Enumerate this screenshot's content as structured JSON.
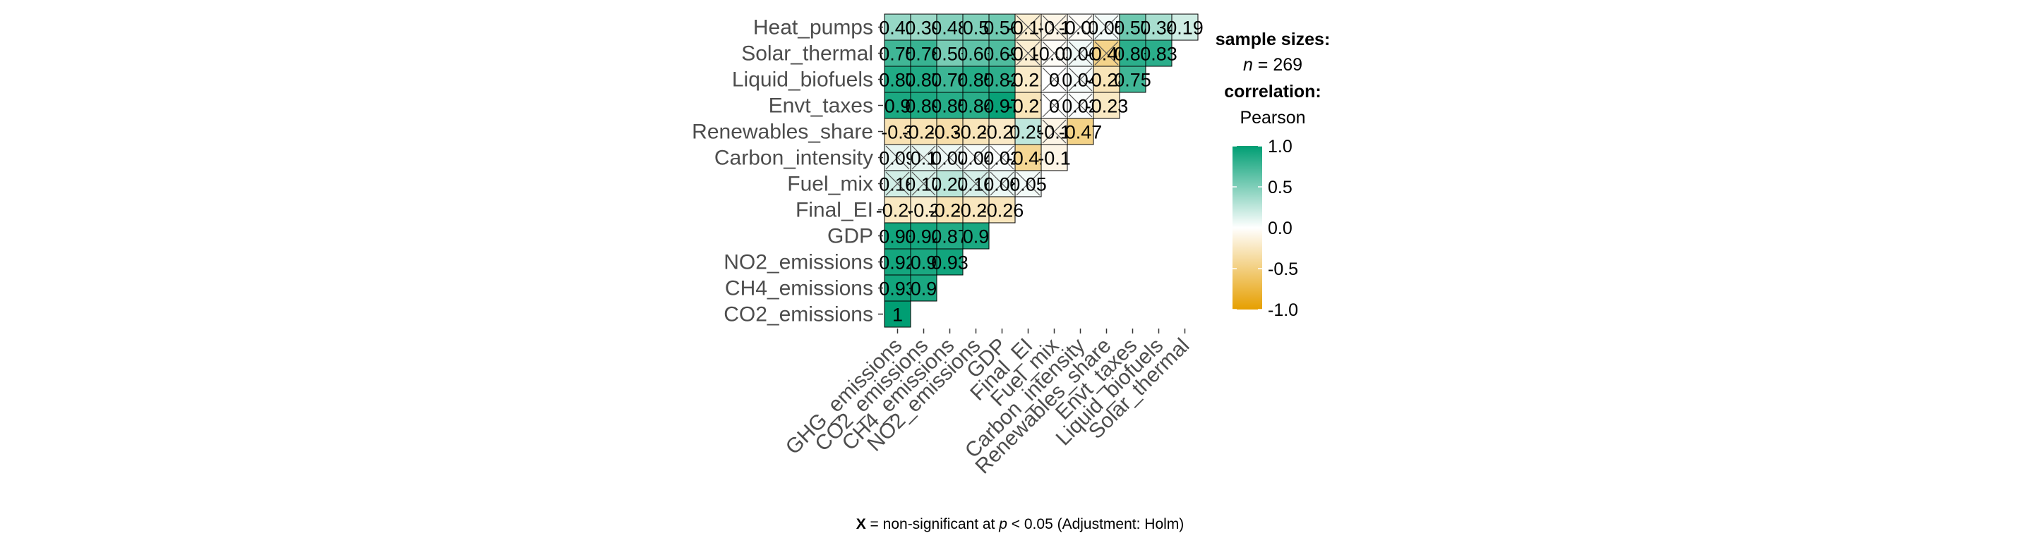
{
  "chart_data": {
    "type": "heatmap",
    "subtype": "lower-triangular correlation matrix",
    "row_labels": [
      "Heat_pumps",
      "Solar_thermal",
      "Liquid_biofuels",
      "Envt_taxes",
      "Renewables_share",
      "Carbon_intensity",
      "Fuel_mix",
      "Final_EI",
      "GDP",
      "NO2_emissions",
      "CH4_emissions",
      "CO2_emissions"
    ],
    "col_labels": [
      "GHG_emissions",
      "CO2_emissions",
      "CH4_emissions",
      "NO2_emissions",
      "GDP",
      "Final_EI",
      "Fuel_mix",
      "Carbon_intensity",
      "Renewables_share",
      "Envt_taxes",
      "Liquid_biofuels",
      "Solar_thermal"
    ],
    "rows": [
      {
        "label": "Heat_pumps",
        "values": [
          0.41,
          0.39,
          0.48,
          0.5,
          0.56,
          -0.18,
          -0.1,
          -0.03,
          0.05,
          0.57,
          0.34,
          0.19
        ],
        "labels": [
          "0.41",
          "0.39",
          "0.48",
          "0.5",
          "0.56",
          "-0.18",
          "-0.1",
          "-0.03",
          "0.05",
          "0.57",
          "0.34",
          "0.19"
        ],
        "crossed": [
          false,
          false,
          false,
          false,
          false,
          true,
          true,
          true,
          true,
          false,
          false,
          false
        ]
      },
      {
        "label": "Solar_thermal",
        "values": [
          0.75,
          0.78,
          0.53,
          0.63,
          0.69,
          -0.18,
          -0.03,
          0.06,
          -0.46,
          0.83,
          0.83
        ],
        "labels": [
          "0.75",
          "0.78",
          "0.53",
          "0.63",
          "0.69",
          "-0.18",
          "-0.03",
          "0.06",
          "-0.46",
          "0.83",
          "0.83"
        ],
        "crossed": [
          false,
          false,
          false,
          false,
          false,
          true,
          true,
          true,
          true,
          false,
          false
        ]
      },
      {
        "label": "Liquid_biofuels",
        "values": [
          0.87,
          0.87,
          0.76,
          0.85,
          0.82,
          -0.21,
          0,
          0.04,
          -0.28,
          0.75
        ],
        "labels": [
          "0.87",
          "0.87",
          "0.76",
          "0.85",
          "0.82",
          "-0.21",
          "0",
          "0.04",
          "-0.28",
          "0.75"
        ],
        "crossed": [
          false,
          false,
          false,
          false,
          false,
          false,
          true,
          true,
          false,
          false
        ]
      },
      {
        "label": "Envt_taxes",
        "values": [
          0.9,
          0.89,
          0.85,
          0.84,
          0.97,
          -0.27,
          0,
          0.02,
          -0.23
        ],
        "labels": [
          "0.9",
          "0.89",
          "0.85",
          "0.84",
          "0.97",
          "-0.27",
          "0",
          "0.02",
          "-0.23"
        ],
        "crossed": [
          false,
          false,
          false,
          false,
          false,
          false,
          true,
          true,
          false
        ]
      },
      {
        "label": "Renewables_share",
        "values": [
          -0.3,
          -0.29,
          -0.33,
          -0.27,
          -0.22,
          0.25,
          -0.1,
          -0.47
        ],
        "labels": [
          "-0.3",
          "-0.29",
          "-0.33",
          "-0.27",
          "-0.22",
          "0.25",
          "-0.1",
          "-0.47"
        ],
        "crossed": [
          false,
          false,
          false,
          false,
          false,
          false,
          true,
          false
        ]
      },
      {
        "label": "Carbon_intensity",
        "values": [
          0.09,
          0.1,
          0.07,
          0.04,
          0.02,
          -0.42,
          -0.1
        ],
        "labels": [
          "0.09",
          "0.1",
          "0.07",
          "0.04",
          "0.02",
          "-0.42",
          "-0.1"
        ],
        "crossed": [
          true,
          true,
          true,
          true,
          true,
          false,
          false
        ]
      },
      {
        "label": "Fuel_mix",
        "values": [
          0.18,
          0.17,
          0.27,
          0.16,
          0.08,
          0.05
        ],
        "labels": [
          "0.18",
          "0.17",
          "0.27",
          "0.16",
          "0.08",
          "0.05"
        ],
        "crossed": [
          true,
          true,
          false,
          true,
          true,
          true
        ]
      },
      {
        "label": "Final_EI",
        "values": [
          -0.24,
          -0.2,
          -0.29,
          -0.25,
          -0.26
        ],
        "labels": [
          "-0.24",
          "-0.2",
          "-0.29",
          "-0.25",
          "-0.26"
        ],
        "crossed": [
          false,
          false,
          false,
          false,
          false
        ]
      },
      {
        "label": "GDP",
        "values": [
          0.93,
          0.92,
          0.87,
          0.9
        ],
        "labels": [
          "0.93",
          "0.92",
          "0.87",
          "0.9"
        ],
        "crossed": [
          false,
          false,
          false,
          false
        ]
      },
      {
        "label": "NO2_emissions",
        "values": [
          0.92,
          0.9,
          0.93
        ],
        "labels": [
          "0.92",
          "0.9",
          "0.93"
        ],
        "crossed": [
          false,
          false,
          false
        ]
      },
      {
        "label": "CH4_emissions",
        "values": [
          0.93,
          0.9
        ],
        "labels": [
          "0.93",
          "0.9"
        ],
        "crossed": [
          false,
          false
        ]
      },
      {
        "label": "CO2_emissions",
        "values": [
          1
        ],
        "labels": [
          "1"
        ],
        "crossed": [
          false
        ]
      }
    ],
    "color_scale": {
      "low": "#E69F00",
      "mid": "#FFFFFF",
      "high": "#009E73",
      "limits": [
        -1,
        1
      ]
    },
    "legend_ticks": [
      "1.0",
      "0.5",
      "0.0",
      "-0.5",
      "-1.0"
    ],
    "legend_tick_values": [
      1,
      0.5,
      0,
      -0.5,
      -1
    ],
    "legend_position": "right",
    "grid": false
  },
  "legend": {
    "sample_sizes_title": "sample sizes:",
    "n_symbol": "n",
    "n_rest": " = 269",
    "correlation_title": "correlation:",
    "method": "Pearson"
  },
  "caption": {
    "symbol": "X",
    "text_a": " = non-significant at ",
    "p_symbol": "p",
    "text_b": " < 0.05 (Adjustment: Holm)"
  }
}
